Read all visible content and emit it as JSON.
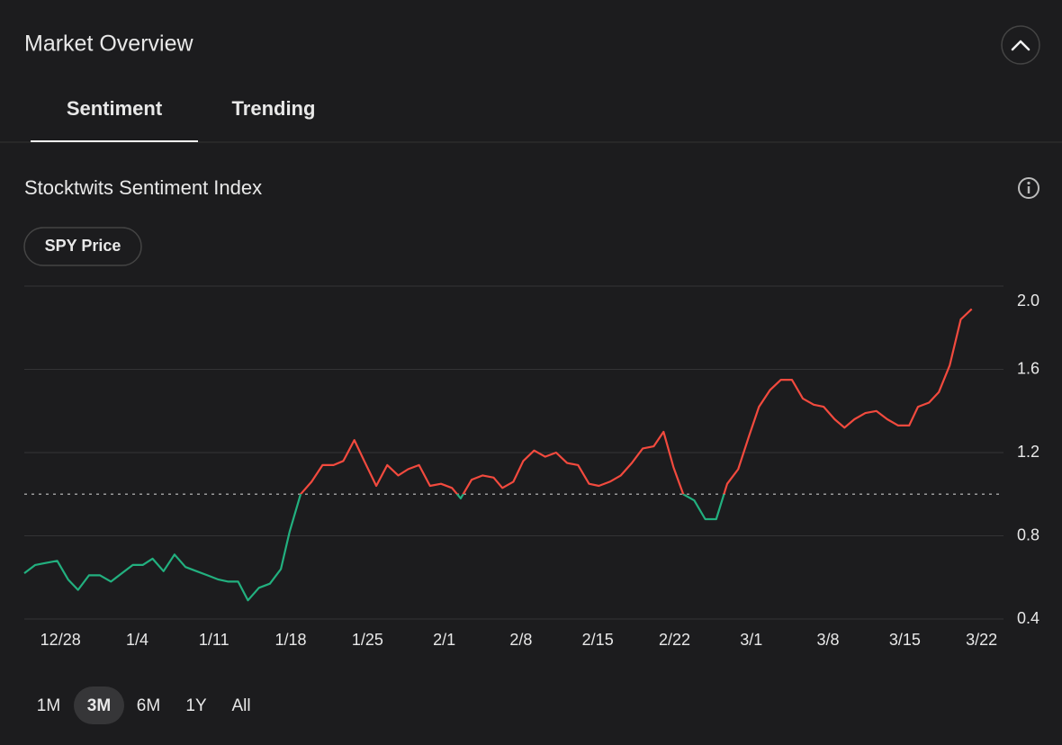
{
  "header": {
    "title": "Market Overview"
  },
  "tabs": {
    "items": [
      "Sentiment",
      "Trending"
    ],
    "active_index": 0
  },
  "section": {
    "title": "Stocktwits Sentiment Index",
    "button": "SPY Price"
  },
  "chart_data": {
    "type": "line",
    "x": [
      -3.3,
      -2.3,
      -1.3,
      -0.3,
      0.7,
      1.6,
      2.6,
      3.6,
      4.6,
      5.6,
      6.6,
      7.5,
      8.4,
      9.4,
      10.4,
      11.4,
      12.4,
      13.4,
      14.4,
      15.3,
      16.2,
      17.1,
      18.1,
      19.1,
      20.1,
      20.9,
      21.9,
      22.9,
      23.9,
      24.9,
      25.8,
      26.8,
      27.7,
      28.8,
      29.8,
      30.8,
      31.7,
      32.7,
      33.7,
      34.7,
      35.7,
      36.5,
      37.5,
      38.5,
      39.5,
      40.3,
      41.3,
      42.2,
      43.2,
      44.2,
      45.2,
      46.2,
      47.2,
      48.2,
      49.1,
      50.1,
      51.1,
      52.1,
      53.1,
      54.1,
      55.0,
      55.9,
      56.8,
      57.8,
      58.8,
      59.8,
      60.8,
      61.8,
      62.8,
      63.7,
      64.7,
      65.7,
      66.7,
      67.7,
      68.7,
      69.6,
      70.6,
      71.5,
      72.4,
      73.4,
      74.4,
      75.4,
      76.4,
      77.4,
      78.2,
      79.2,
      80.1,
      81.1,
      82.1,
      83.1
    ],
    "values": [
      0.62,
      0.66,
      0.67,
      0.68,
      0.59,
      0.54,
      0.61,
      0.61,
      0.58,
      0.62,
      0.66,
      0.66,
      0.69,
      0.63,
      0.71,
      0.65,
      0.63,
      0.61,
      0.59,
      0.58,
      0.58,
      0.49,
      0.55,
      0.57,
      0.64,
      0.82,
      1.0,
      1.06,
      1.14,
      1.14,
      1.16,
      1.26,
      1.16,
      1.04,
      1.14,
      1.09,
      1.12,
      1.14,
      1.04,
      1.05,
      1.03,
      0.98,
      1.07,
      1.09,
      1.08,
      1.03,
      1.06,
      1.16,
      1.21,
      1.18,
      1.2,
      1.15,
      1.14,
      1.05,
      1.04,
      1.06,
      1.09,
      1.15,
      1.22,
      1.23,
      1.3,
      1.13,
      1.0,
      0.97,
      0.88,
      0.88,
      1.05,
      1.12,
      1.28,
      1.42,
      1.5,
      1.55,
      1.55,
      1.46,
      1.43,
      1.42,
      1.36,
      1.32,
      1.36,
      1.39,
      1.4,
      1.36,
      1.33,
      1.33,
      1.42,
      1.44,
      1.49,
      1.62,
      1.84,
      1.89
    ],
    "threshold": 1.0,
    "color_above": "#f24a3e",
    "color_below": "#22b07f",
    "xlim": [
      -3.3,
      86
    ],
    "xticks": [
      {
        "value": 0,
        "label": "12/28"
      },
      {
        "value": 7,
        "label": "1/4"
      },
      {
        "value": 14,
        "label": "1/11"
      },
      {
        "value": 21,
        "label": "1/18"
      },
      {
        "value": 28,
        "label": "1/25"
      },
      {
        "value": 35,
        "label": "2/1"
      },
      {
        "value": 42,
        "label": "2/8"
      },
      {
        "value": 49,
        "label": "2/15"
      },
      {
        "value": 56,
        "label": "2/22"
      },
      {
        "value": 63,
        "label": "3/1"
      },
      {
        "value": 70,
        "label": "3/8"
      },
      {
        "value": 77,
        "label": "3/15"
      },
      {
        "value": 84,
        "label": "3/22"
      }
    ],
    "ylim": [
      0.4,
      2.0
    ],
    "yticks": [
      {
        "value": 0.4,
        "label": "0.4"
      },
      {
        "value": 0.8,
        "label": "0.8"
      },
      {
        "value": 1.2,
        "label": "1.2"
      },
      {
        "value": 1.6,
        "label": "1.6"
      },
      {
        "value": 2.0,
        "label": "2.0"
      }
    ],
    "grid": true
  },
  "ranges": {
    "items": [
      "1M",
      "3M",
      "6M",
      "1Y",
      "All"
    ],
    "active_index": 1
  }
}
